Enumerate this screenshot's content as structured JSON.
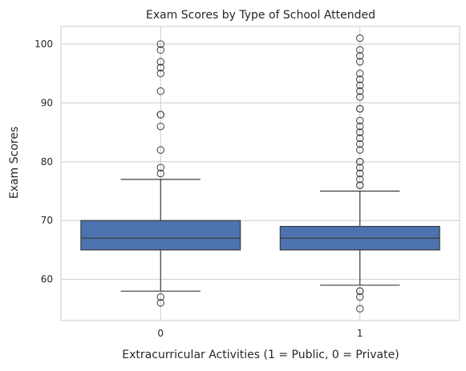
{
  "chart_data": {
    "type": "box",
    "title": "Exam Scores by Type of School Attended",
    "xlabel": "Extracurricular Activities (1 = Public, 0 = Private)",
    "ylabel": "Exam Scores",
    "categories": [
      "0",
      "1"
    ],
    "ylim": [
      53,
      103
    ],
    "yticks": [
      60,
      70,
      80,
      90,
      100
    ],
    "grid": true,
    "box_color": "#4c72b0",
    "line_color": "#3d3d3d",
    "boxes": [
      {
        "category": "0",
        "whisker_low": 58,
        "q1": 65,
        "median": 67,
        "q3": 70,
        "whisker_high": 77,
        "outliers": [
          56,
          57,
          78,
          79,
          82,
          86,
          88,
          88,
          92,
          95,
          96,
          97,
          99,
          100
        ]
      },
      {
        "category": "1",
        "whisker_low": 59,
        "q1": 65,
        "median": 67,
        "q3": 69,
        "whisker_high": 75,
        "outliers": [
          55,
          57,
          58,
          58,
          76,
          76,
          77,
          78,
          79,
          80,
          80,
          82,
          83,
          84,
          85,
          86,
          87,
          89,
          89,
          91,
          92,
          93,
          94,
          95,
          97,
          98,
          99,
          101
        ]
      }
    ]
  }
}
